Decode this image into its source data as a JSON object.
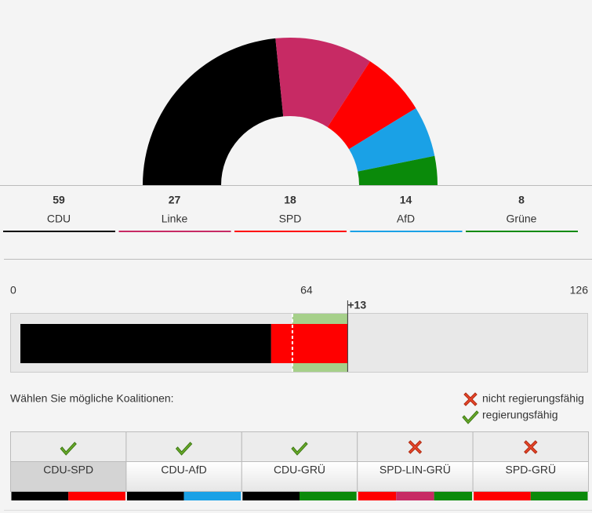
{
  "chart_data": {
    "type": "parliament",
    "total_seats": 126,
    "parties": [
      {
        "name": "CDU",
        "seats": 59,
        "color": "#000000"
      },
      {
        "name": "Linke",
        "seats": 27,
        "color": "#c72a64"
      },
      {
        "name": "SPD",
        "seats": 18,
        "color": "#ff0000"
      },
      {
        "name": "AfD",
        "seats": 14,
        "color": "#1aa1e6"
      },
      {
        "name": "Grüne",
        "seats": 8,
        "color": "#0a8a0a"
      }
    ],
    "bar": {
      "xlim": [
        0,
        126
      ],
      "xticks": [
        0,
        64,
        126
      ],
      "majority": 64,
      "surplus_label": "+13",
      "segments": [
        {
          "seats": 59,
          "color": "#000000"
        },
        {
          "seats": 18,
          "color": "#ff0000"
        }
      ]
    },
    "prompt": "Wählen Sie mögliche Koalitionen:",
    "legend": {
      "not_viable": "nicht regierungsfähig",
      "viable": "regierungsfähig"
    },
    "coalitions": [
      {
        "name": "CDU-SPD",
        "viable": true,
        "selected": true,
        "colors": [
          "#000000",
          "#ff0000"
        ]
      },
      {
        "name": "CDU-AfD",
        "viable": true,
        "selected": false,
        "colors": [
          "#000000",
          "#1aa1e6"
        ]
      },
      {
        "name": "CDU-GRÜ",
        "viable": true,
        "selected": false,
        "colors": [
          "#000000",
          "#0a8a0a"
        ]
      },
      {
        "name": "SPD-LIN-GRÜ",
        "viable": false,
        "selected": false,
        "colors": [
          "#ff0000",
          "#c72a64",
          "#0a8a0a"
        ]
      },
      {
        "name": "SPD-GRÜ",
        "viable": false,
        "selected": false,
        "colors": [
          "#ff0000",
          "#0a8a0a"
        ]
      }
    ]
  }
}
